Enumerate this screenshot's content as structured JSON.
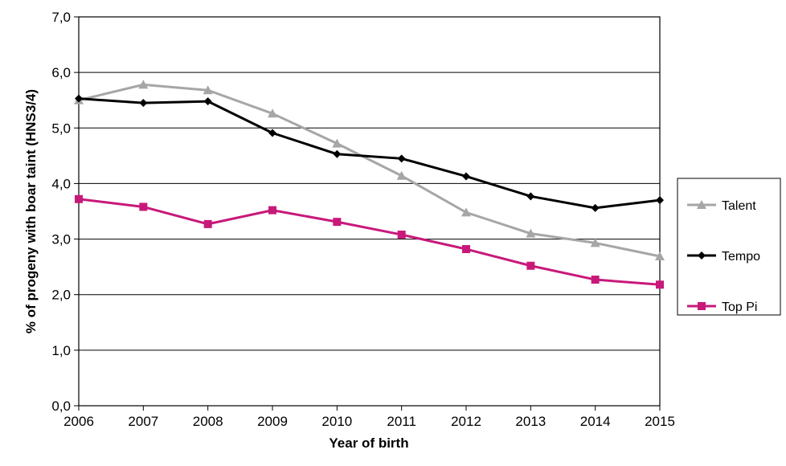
{
  "chart_data": {
    "type": "line",
    "title": "",
    "xlabel": "Year of birth",
    "ylabel": "% of progeny with boar taint (HNS3/4)",
    "x": [
      "2006",
      "2007",
      "2008",
      "2009",
      "2010",
      "2011",
      "2012",
      "2013",
      "2014",
      "2015"
    ],
    "ylim": [
      0,
      7
    ],
    "yticks": [
      "0,0",
      "1,0",
      "2,0",
      "3,0",
      "4,0",
      "5,0",
      "6,0",
      "7,0"
    ],
    "grid": "horizontal",
    "legend_position": "right",
    "series": [
      {
        "name": "Talent",
        "color": "#a6a6a6",
        "marker": "triangle",
        "values": [
          5.5,
          5.78,
          5.68,
          5.26,
          4.72,
          4.14,
          3.48,
          3.1,
          2.93,
          2.69
        ]
      },
      {
        "name": "Tempo",
        "color": "#000000",
        "marker": "diamond",
        "values": [
          5.53,
          5.45,
          5.48,
          4.91,
          4.53,
          4.45,
          4.13,
          3.77,
          3.56,
          3.7
        ]
      },
      {
        "name": "Top Pi",
        "color": "#c8197a",
        "marker": "square",
        "values": [
          3.72,
          3.58,
          3.27,
          3.52,
          3.31,
          3.08,
          2.82,
          2.52,
          2.27,
          2.18
        ]
      }
    ]
  }
}
